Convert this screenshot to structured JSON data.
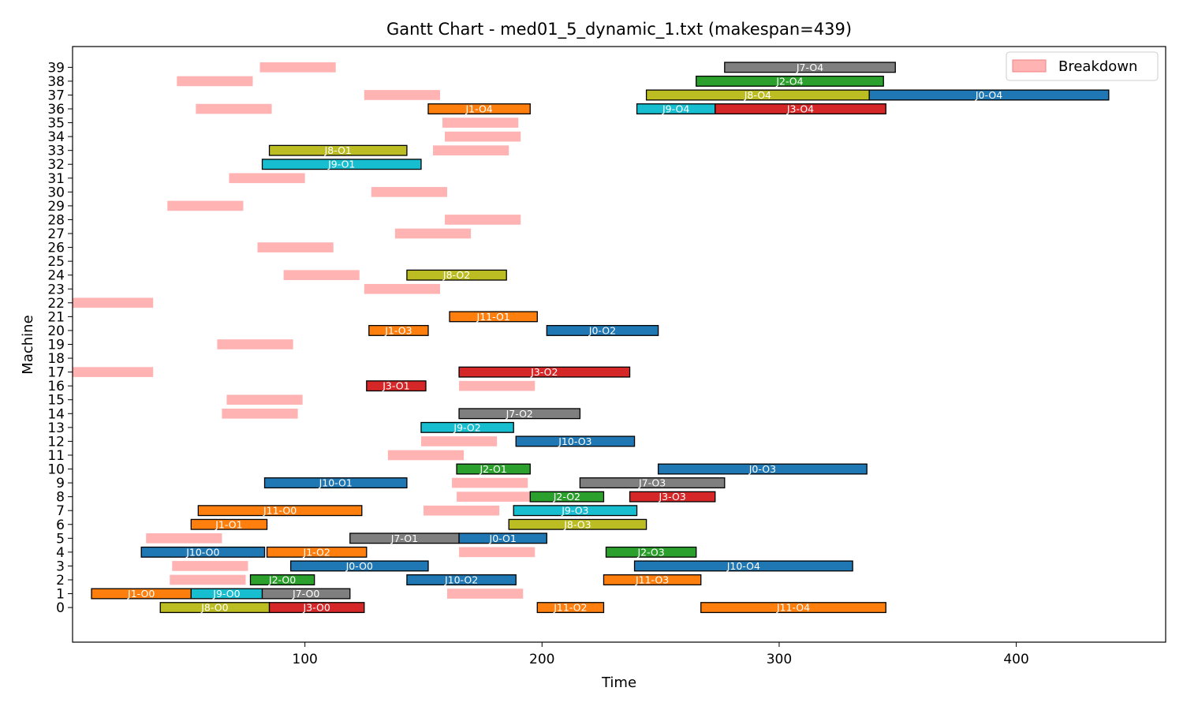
{
  "chart_data": {
    "type": "gantt",
    "title": "Gantt Chart - med01_5_dynamic_1.txt (makespan=439)",
    "xlabel": "Time",
    "ylabel": "Machine",
    "xlim": [
      2,
      463
    ],
    "ylim": [
      -2.5,
      40.5
    ],
    "x_ticks": [
      100,
      200,
      300,
      400
    ],
    "y_ticks": [
      0,
      1,
      2,
      3,
      4,
      5,
      6,
      7,
      8,
      9,
      10,
      11,
      12,
      13,
      14,
      15,
      16,
      17,
      18,
      19,
      20,
      21,
      22,
      23,
      24,
      25,
      26,
      27,
      28,
      29,
      30,
      31,
      32,
      33,
      34,
      35,
      36,
      37,
      38,
      39
    ],
    "legend": {
      "placement": "top-right",
      "entries": [
        {
          "label": "Breakdown",
          "color": "#ffb3b3"
        }
      ]
    },
    "job_colors": {
      "J0": "#1f77b4",
      "J1": "#ff7f0e",
      "J2": "#2ca02c",
      "J3": "#d62728",
      "J7": "#7f7f7f",
      "J8": "#bcbd22",
      "J9": "#17becf",
      "J10": "#1f77b4",
      "J11": "#ff7f0e"
    },
    "breakdown_color": "#ffb3b3",
    "operations": [
      {
        "label": "J8-O0",
        "job": "J8",
        "machine": 0,
        "start": 39,
        "end": 85
      },
      {
        "label": "J3-O0",
        "job": "J3",
        "machine": 0,
        "start": 85,
        "end": 125
      },
      {
        "label": "J11-O2",
        "job": "J11",
        "machine": 0,
        "start": 198,
        "end": 226
      },
      {
        "label": "J11-O4",
        "job": "J11",
        "machine": 0,
        "start": 267,
        "end": 345
      },
      {
        "label": "J1-O0",
        "job": "J1",
        "machine": 1,
        "start": 10,
        "end": 52
      },
      {
        "label": "J9-O0",
        "job": "J9",
        "machine": 1,
        "start": 52,
        "end": 82
      },
      {
        "label": "J7-O0",
        "job": "J7",
        "machine": 1,
        "start": 82,
        "end": 119
      },
      {
        "label": "J2-O0",
        "job": "J2",
        "machine": 2,
        "start": 77,
        "end": 104
      },
      {
        "label": "J10-O2",
        "job": "J10",
        "machine": 2,
        "start": 143,
        "end": 189
      },
      {
        "label": "J11-O3",
        "job": "J11",
        "machine": 2,
        "start": 226,
        "end": 267
      },
      {
        "label": "J0-O0",
        "job": "J0",
        "machine": 3,
        "start": 94,
        "end": 152
      },
      {
        "label": "J10-O4",
        "job": "J10",
        "machine": 3,
        "start": 239,
        "end": 331
      },
      {
        "label": "J10-O0",
        "job": "J10",
        "machine": 4,
        "start": 31,
        "end": 83
      },
      {
        "label": "J1-O2",
        "job": "J1",
        "machine": 4,
        "start": 84,
        "end": 126
      },
      {
        "label": "J2-O3",
        "job": "J2",
        "machine": 4,
        "start": 227,
        "end": 265
      },
      {
        "label": "J7-O1",
        "job": "J7",
        "machine": 5,
        "start": 119,
        "end": 165
      },
      {
        "label": "J0-O1",
        "job": "J0",
        "machine": 5,
        "start": 165,
        "end": 202
      },
      {
        "label": "J1-O1",
        "job": "J1",
        "machine": 6,
        "start": 52,
        "end": 84
      },
      {
        "label": "J8-O3",
        "job": "J8",
        "machine": 6,
        "start": 186,
        "end": 244
      },
      {
        "label": "J11-O0",
        "job": "J11",
        "machine": 7,
        "start": 55,
        "end": 124
      },
      {
        "label": "J9-O3",
        "job": "J9",
        "machine": 7,
        "start": 188,
        "end": 240
      },
      {
        "label": "J2-O2",
        "job": "J2",
        "machine": 8,
        "start": 195,
        "end": 226
      },
      {
        "label": "J3-O3",
        "job": "J3",
        "machine": 8,
        "start": 237,
        "end": 273
      },
      {
        "label": "J10-O1",
        "job": "J10",
        "machine": 9,
        "start": 83,
        "end": 143
      },
      {
        "label": "J7-O3",
        "job": "J7",
        "machine": 9,
        "start": 216,
        "end": 277
      },
      {
        "label": "J2-O1",
        "job": "J2",
        "machine": 10,
        "start": 164,
        "end": 195
      },
      {
        "label": "J0-O3",
        "job": "J0",
        "machine": 10,
        "start": 249,
        "end": 337
      },
      {
        "label": "J10-O3",
        "job": "J10",
        "machine": 12,
        "start": 189,
        "end": 239
      },
      {
        "label": "J9-O2",
        "job": "J9",
        "machine": 13,
        "start": 149,
        "end": 188
      },
      {
        "label": "J7-O2",
        "job": "J7",
        "machine": 14,
        "start": 165,
        "end": 216
      },
      {
        "label": "J3-O1",
        "job": "J3",
        "machine": 16,
        "start": 126,
        "end": 151
      },
      {
        "label": "J3-O2",
        "job": "J3",
        "machine": 17,
        "start": 165,
        "end": 237
      },
      {
        "label": "J1-O3",
        "job": "J1",
        "machine": 20,
        "start": 127,
        "end": 152
      },
      {
        "label": "J0-O2",
        "job": "J0",
        "machine": 20,
        "start": 202,
        "end": 249
      },
      {
        "label": "J11-O1",
        "job": "J11",
        "machine": 21,
        "start": 161,
        "end": 198
      },
      {
        "label": "J8-O2",
        "job": "J8",
        "machine": 24,
        "start": 143,
        "end": 185
      },
      {
        "label": "J9-O1",
        "job": "J9",
        "machine": 32,
        "start": 82,
        "end": 149
      },
      {
        "label": "J8-O1",
        "job": "J8",
        "machine": 33,
        "start": 85,
        "end": 143
      },
      {
        "label": "J1-O4",
        "job": "J1",
        "machine": 36,
        "start": 152,
        "end": 195
      },
      {
        "label": "J9-O4",
        "job": "J9",
        "machine": 36,
        "start": 240,
        "end": 273
      },
      {
        "label": "J3-O4",
        "job": "J3",
        "machine": 36,
        "start": 273,
        "end": 345
      },
      {
        "label": "J8-O4",
        "job": "J8",
        "machine": 37,
        "start": 244,
        "end": 338
      },
      {
        "label": "J0-O4",
        "job": "J0",
        "machine": 37,
        "start": 338,
        "end": 439
      },
      {
        "label": "J2-O4",
        "job": "J2",
        "machine": 38,
        "start": 265,
        "end": 344
      },
      {
        "label": "J7-O4",
        "job": "J7",
        "machine": 39,
        "start": 277,
        "end": 349
      }
    ],
    "breakdowns": [
      {
        "machine": 1,
        "start": 160,
        "end": 192
      },
      {
        "machine": 2,
        "start": 43,
        "end": 75
      },
      {
        "machine": 3,
        "start": 44,
        "end": 76
      },
      {
        "machine": 4,
        "start": 165,
        "end": 197
      },
      {
        "machine": 5,
        "start": 33,
        "end": 65
      },
      {
        "machine": 7,
        "start": 150,
        "end": 182
      },
      {
        "machine": 8,
        "start": 164,
        "end": 196
      },
      {
        "machine": 9,
        "start": 162,
        "end": 194
      },
      {
        "machine": 11,
        "start": 135,
        "end": 167
      },
      {
        "machine": 12,
        "start": 149,
        "end": 181
      },
      {
        "machine": 14,
        "start": 65,
        "end": 97
      },
      {
        "machine": 15,
        "start": 67,
        "end": 99
      },
      {
        "machine": 16,
        "start": 165,
        "end": 197
      },
      {
        "machine": 17,
        "start": 2,
        "end": 36
      },
      {
        "machine": 19,
        "start": 63,
        "end": 95
      },
      {
        "machine": 22,
        "start": 2,
        "end": 36
      },
      {
        "machine": 23,
        "start": 125,
        "end": 157
      },
      {
        "machine": 24,
        "start": 91,
        "end": 123
      },
      {
        "machine": 26,
        "start": 80,
        "end": 112
      },
      {
        "machine": 27,
        "start": 138,
        "end": 170
      },
      {
        "machine": 28,
        "start": 159,
        "end": 191
      },
      {
        "machine": 29,
        "start": 42,
        "end": 74
      },
      {
        "machine": 30,
        "start": 128,
        "end": 160
      },
      {
        "machine": 31,
        "start": 68,
        "end": 100
      },
      {
        "machine": 33,
        "start": 154,
        "end": 186
      },
      {
        "machine": 34,
        "start": 159,
        "end": 191
      },
      {
        "machine": 35,
        "start": 158,
        "end": 190
      },
      {
        "machine": 36,
        "start": 54,
        "end": 86
      },
      {
        "machine": 37,
        "start": 125,
        "end": 157
      },
      {
        "machine": 38,
        "start": 46,
        "end": 78
      },
      {
        "machine": 39,
        "start": 81,
        "end": 113
      }
    ]
  }
}
